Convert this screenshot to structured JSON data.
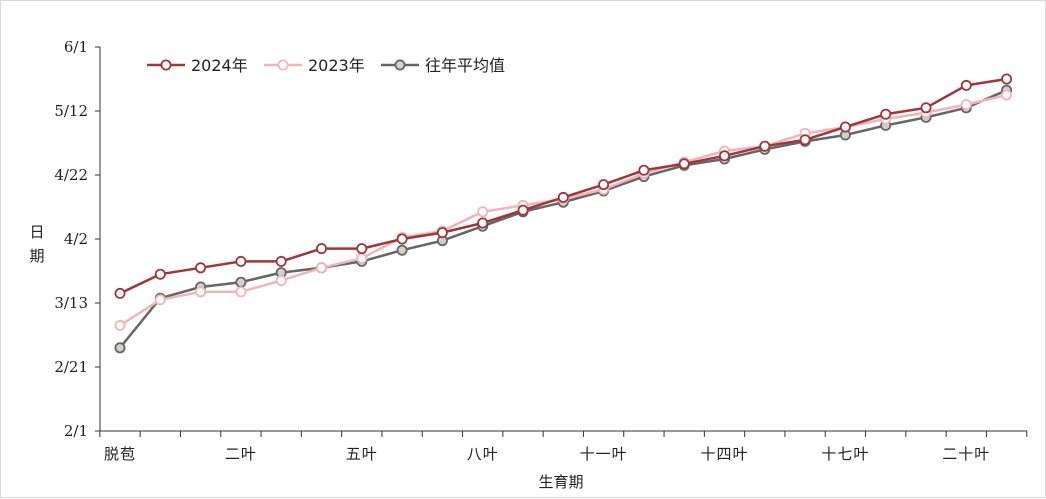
{
  "chart_data": {
    "type": "line",
    "title": "",
    "xlabel": "生育期",
    "ylabel": "日期",
    "ylabel_chars": [
      "日",
      "期"
    ],
    "y_ticks": [
      {
        "label": "2/1",
        "value": 0
      },
      {
        "label": "2/21",
        "value": 20
      },
      {
        "label": "3/13",
        "value": 40
      },
      {
        "label": "4/2",
        "value": 60
      },
      {
        "label": "4/22",
        "value": 80
      },
      {
        "label": "5/12",
        "value": 100
      },
      {
        "label": "6/1",
        "value": 120
      }
    ],
    "ylim": [
      0,
      120
    ],
    "x_count": 23,
    "x_tick_labels": [
      {
        "label": "脱苞",
        "index": 0
      },
      {
        "label": "二叶",
        "index": 3
      },
      {
        "label": "五叶",
        "index": 6
      },
      {
        "label": "八叶",
        "index": 9
      },
      {
        "label": "十一叶",
        "index": 12
      },
      {
        "label": "十四叶",
        "index": 15
      },
      {
        "label": "十七叶",
        "index": 18
      },
      {
        "label": "二十叶",
        "index": 21
      }
    ],
    "legend_position": "top-left",
    "grid": false,
    "series": [
      {
        "name": "2024年",
        "color": "#a0363c",
        "marker_fill": "#ffffff",
        "values": [
          43,
          49,
          51,
          53,
          53,
          57,
          57,
          60,
          62,
          65,
          69,
          73,
          77,
          81.5,
          83.5,
          86,
          89,
          91,
          95,
          99,
          101,
          108,
          110
        ]
      },
      {
        "name": "2023年",
        "color": "#f0b5b8",
        "marker_fill": "#ffffff",
        "values": [
          33,
          41,
          43.5,
          43.5,
          47,
          51,
          54,
          60.5,
          62.5,
          68.5,
          70.5,
          72.5,
          75.5,
          80.5,
          84,
          87.5,
          89,
          93,
          95,
          97.5,
          99.5,
          102,
          105
        ]
      },
      {
        "name": "往年平均值",
        "color": "#666666",
        "marker_fill": "#d2d2c6",
        "values": [
          26,
          41.5,
          45,
          46.5,
          49.5,
          51,
          53,
          56.5,
          59.5,
          64,
          68.5,
          71.5,
          75,
          79.5,
          83,
          85,
          88,
          90.5,
          92.5,
          95.5,
          98,
          101,
          106.5
        ]
      }
    ]
  }
}
